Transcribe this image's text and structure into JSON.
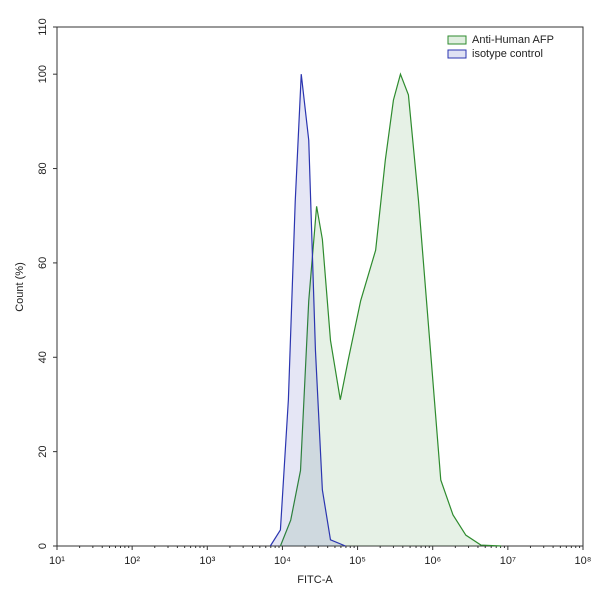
{
  "chart_data": {
    "type": "area",
    "xlabel": "FITC-A",
    "ylabel": "Count (%)",
    "xscale": "log",
    "legend": "upper right",
    "xlim": [
      10,
      100000000
    ],
    "ylim": [
      0,
      110
    ],
    "xticks": [
      {
        "value": 10,
        "label": "10¹"
      },
      {
        "value": 100,
        "label": "10²"
      },
      {
        "value": 1000,
        "label": "10³"
      },
      {
        "value": 10000,
        "label": "10⁴"
      },
      {
        "value": 100000,
        "label": "10⁵"
      },
      {
        "value": 1000000,
        "label": "10⁶"
      },
      {
        "value": 10000000,
        "label": "10⁷"
      },
      {
        "value": 100000000,
        "label": "10⁸"
      }
    ],
    "yticks": [
      0,
      20,
      40,
      60,
      80,
      100,
      110
    ],
    "series": [
      {
        "name": "Anti-Human AFP",
        "color": "#2e8b2e",
        "x": [
          9400,
          12900,
          17400,
          22400,
          28500,
          34000,
          43600,
          58900,
          75000,
          110000,
          174000,
          234000,
          300000,
          372000,
          475000,
          646000,
          933000,
          1280000,
          1860000,
          2760000,
          4370000,
          8130000
        ],
        "values": [
          0,
          5.5,
          16,
          52,
          72,
          65,
          43.6,
          31,
          39.4,
          52,
          62.7,
          81.8,
          94.5,
          100,
          95.6,
          73.3,
          41.5,
          14,
          6.6,
          2.3,
          0.2,
          0
        ]
      },
      {
        "name": "isotype control",
        "color": "#2b35b0",
        "x": [
          6900,
          9400,
          12000,
          14800,
          17800,
          22400,
          27500,
          34000,
          43600,
          69000
        ],
        "values": [
          0,
          3.4,
          31,
          73,
          100,
          86,
          41.5,
          11.9,
          1.3,
          0
        ]
      }
    ]
  }
}
